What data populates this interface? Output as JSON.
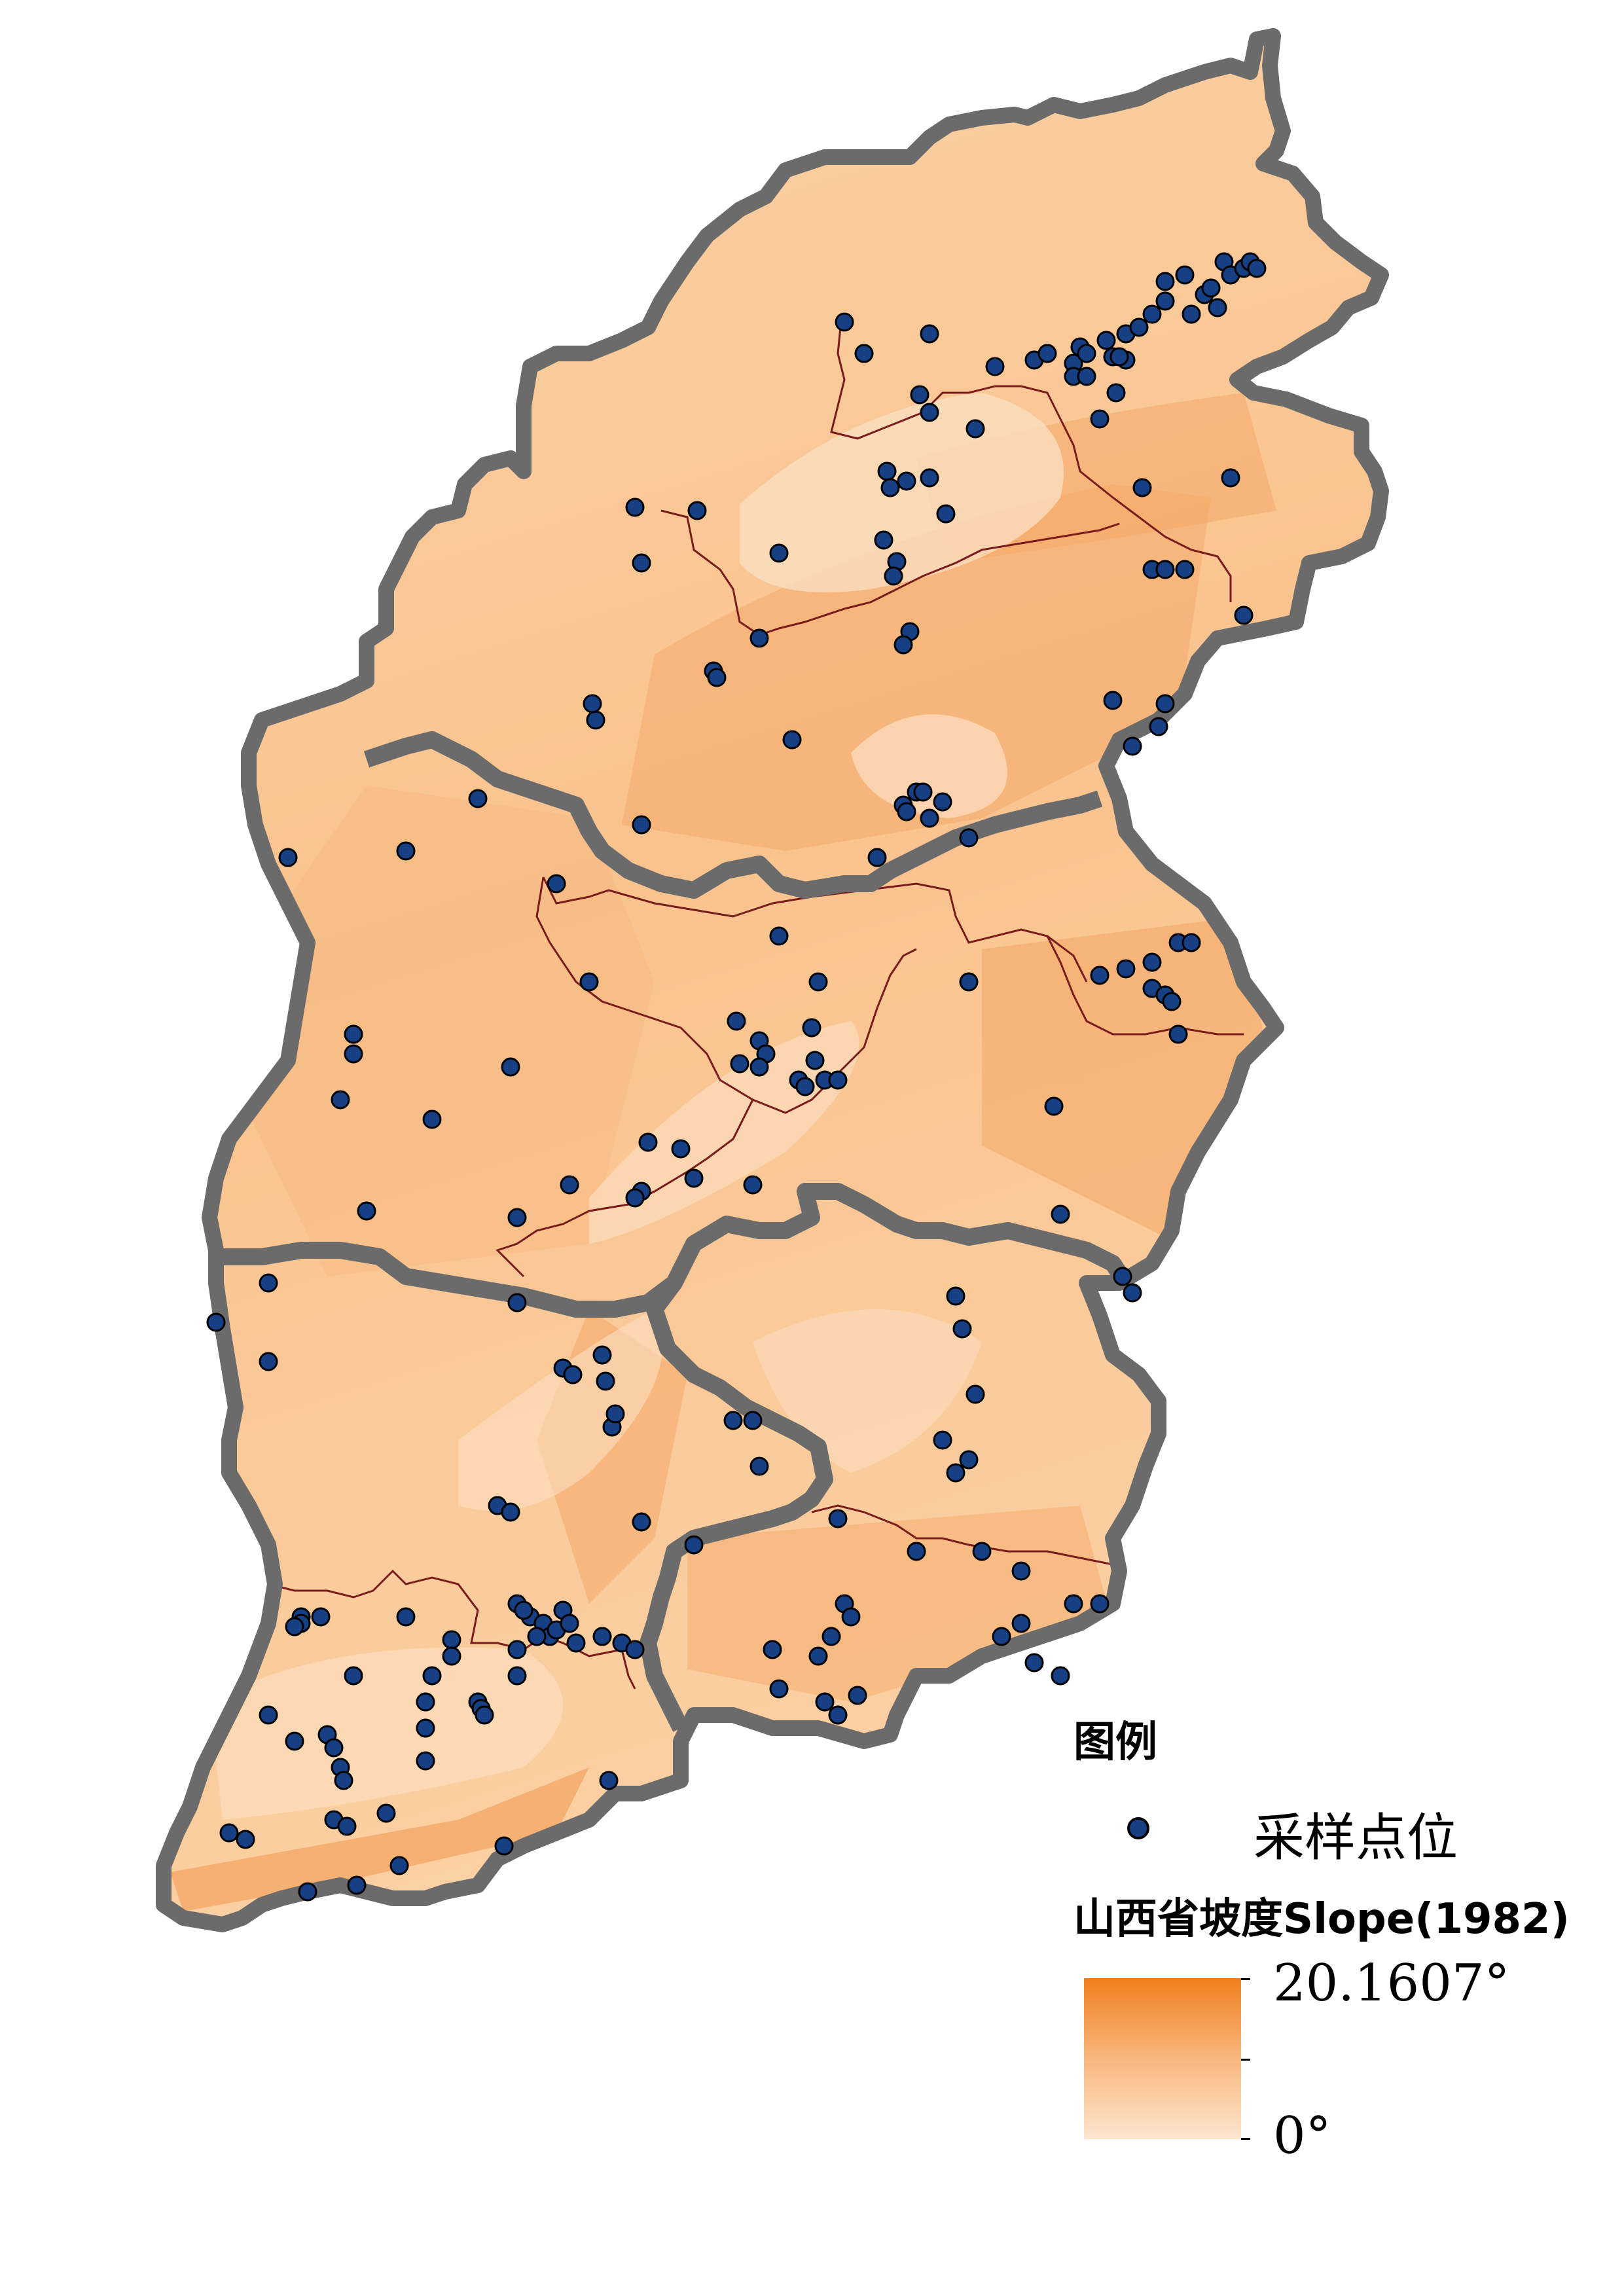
{
  "legend": {
    "title": "图例",
    "sample_label": "采样点位",
    "slope_title": "山西省坡度Slope(1982)",
    "max_label": "20.1607°",
    "min_label": "0°"
  },
  "colors": {
    "ramp_high": "#f07f1e",
    "ramp_low": "#fde6cf",
    "region_border": "#6b6b6b",
    "city_border": "#7a1c1c",
    "sample_point": "#163f84"
  },
  "map": {
    "features": [
      "province-outline",
      "region-borders",
      "city-borders",
      "slope-raster",
      "sample-points"
    ]
  }
}
